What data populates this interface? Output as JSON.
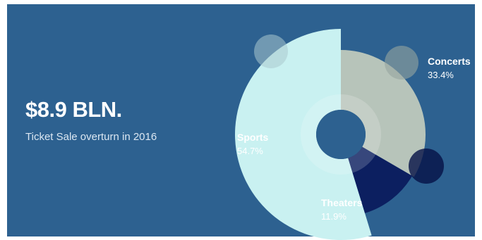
{
  "headline": {
    "value": "$8.9 BLN.",
    "caption": "Ticket Sale overturn in 2016"
  },
  "chart_data": {
    "type": "pie",
    "categories": [
      "Sports",
      "Concerts",
      "Theaters"
    ],
    "values": [
      54.7,
      33.4,
      11.9
    ],
    "value_labels": [
      "54.7%",
      "33.4%",
      "11.9%"
    ],
    "colors": [
      "#c9f1f1",
      "#b7c4ba",
      "#0c1f60"
    ],
    "title": "",
    "legend": "none"
  }
}
